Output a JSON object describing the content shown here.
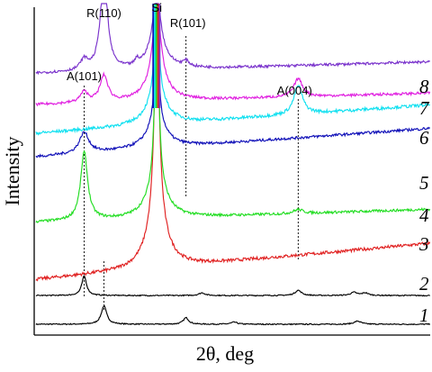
{
  "chart_data": {
    "type": "line",
    "title": "",
    "xlabel": "2θ, deg",
    "ylabel": "Intensity",
    "x_range": [
      20,
      62
    ],
    "ticks_shown": false,
    "grid": false,
    "legend": "none",
    "series": [
      {
        "name": "1",
        "color": "#000000",
        "baseline": 0.0,
        "slope": 0.0,
        "noise": 0.002,
        "peaks": [
          {
            "x": 27.4,
            "h": 0.07,
            "w": 0.35
          },
          {
            "x": 36.1,
            "h": 0.025,
            "w": 0.35
          },
          {
            "x": 41.2,
            "h": 0.008,
            "w": 0.4
          },
          {
            "x": 54.3,
            "h": 0.012,
            "w": 0.45
          }
        ]
      },
      {
        "name": "2",
        "color": "#000000",
        "baseline": 0.11,
        "slope": 0.0,
        "noise": 0.002,
        "peaks": [
          {
            "x": 25.3,
            "h": 0.075,
            "w": 0.3
          },
          {
            "x": 37.8,
            "h": 0.01,
            "w": 0.4
          },
          {
            "x": 48.0,
            "h": 0.02,
            "w": 0.4
          },
          {
            "x": 53.9,
            "h": 0.012,
            "w": 0.4
          },
          {
            "x": 55.1,
            "h": 0.01,
            "w": 0.4
          }
        ]
      },
      {
        "name": "3",
        "color": "#e02020",
        "baseline": 0.17,
        "slope": 0.14,
        "noise": 0.006,
        "peaks": [
          {
            "x": 33.0,
            "h": 0.78,
            "w": 0.3
          },
          {
            "x": 33.0,
            "h": 0.2,
            "w": 1.2
          }
        ]
      },
      {
        "name": "4",
        "color": "#22dd22",
        "baseline": 0.39,
        "slope": 0.05,
        "noise": 0.005,
        "peaks": [
          {
            "x": 25.3,
            "h": 0.26,
            "w": 0.45
          },
          {
            "x": 33.0,
            "h": 0.68,
            "w": 0.25
          },
          {
            "x": 33.0,
            "h": 0.13,
            "w": 1.2
          },
          {
            "x": 48.0,
            "h": 0.015,
            "w": 0.6
          }
        ]
      },
      {
        "name": "5",
        "color": "#1010b8",
        "baseline": 0.64,
        "slope": 0.11,
        "noise": 0.005,
        "peaks": [
          {
            "x": 25.3,
            "h": 0.08,
            "w": 0.6
          },
          {
            "x": 33.0,
            "h": 0.5,
            "w": 0.2
          },
          {
            "x": 33.0,
            "h": 0.1,
            "w": 1.2
          }
        ]
      },
      {
        "name": "6",
        "color": "#10e0f0",
        "baseline": 0.73,
        "slope": 0.11,
        "noise": 0.006,
        "peaks": [
          {
            "x": 33.0,
            "h": 0.55,
            "w": 0.2
          },
          {
            "x": 33.0,
            "h": 0.12,
            "w": 1.2
          },
          {
            "x": 48.0,
            "h": 0.11,
            "w": 0.55
          }
        ]
      },
      {
        "name": "7",
        "color": "#e020e0",
        "baseline": 0.84,
        "slope": 0.045,
        "noise": 0.005,
        "peaks": [
          {
            "x": 25.3,
            "h": 0.04,
            "w": 0.5
          },
          {
            "x": 27.4,
            "h": 0.1,
            "w": 0.5
          },
          {
            "x": 33.0,
            "h": 0.28,
            "w": 0.45
          },
          {
            "x": 33.0,
            "h": 0.1,
            "w": 1.2
          },
          {
            "x": 48.0,
            "h": 0.07,
            "w": 0.55
          }
        ]
      },
      {
        "name": "8",
        "color": "#7a33cc",
        "baseline": 0.96,
        "slope": 0.045,
        "noise": 0.005,
        "peaks": [
          {
            "x": 25.3,
            "h": 0.04,
            "w": 0.5
          },
          {
            "x": 27.4,
            "h": 0.37,
            "w": 0.45
          },
          {
            "x": 33.0,
            "h": 0.22,
            "w": 0.45
          },
          {
            "x": 33.0,
            "h": 0.08,
            "w": 1.2
          },
          {
            "x": 30.9,
            "h": 0.02,
            "w": 0.2
          },
          {
            "x": 36.1,
            "h": 0.02,
            "w": 0.4
          }
        ]
      }
    ],
    "si_peak": {
      "x": 33.0,
      "colors": [
        "#1010b8",
        "#10e0f0",
        "#22dd22",
        "#e02020",
        "#7a33cc"
      ]
    },
    "annotations": [
      {
        "text": "A(101)",
        "x": 25.3
      },
      {
        "text": "R(110)",
        "x": 27.4
      },
      {
        "text": "Si",
        "x": 33.0
      },
      {
        "text": "R(101)",
        "x": 36.1
      },
      {
        "text": "A(004)",
        "x": 48.0
      }
    ]
  }
}
